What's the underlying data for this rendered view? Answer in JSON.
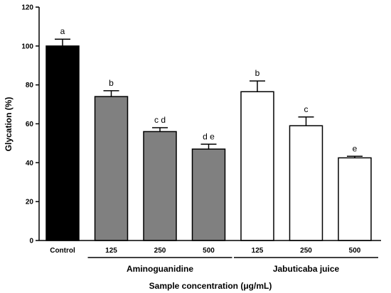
{
  "chart_data": {
    "type": "bar",
    "ylabel": "Glycation (%)",
    "xlabel": "Sample concentration (μg/mL)",
    "ylim": [
      0,
      120
    ],
    "yticks": [
      "0",
      "20",
      "40",
      "60",
      "80",
      "100",
      "120"
    ],
    "grid": false,
    "bars": [
      {
        "category": "Control",
        "value": 100,
        "error": 3.5,
        "significance": "a",
        "color": "#000000"
      },
      {
        "category": "125",
        "value": 74,
        "error": 3,
        "significance": "b",
        "color": "#808080"
      },
      {
        "category": "250",
        "value": 56,
        "error": 2,
        "significance": "c d",
        "color": "#808080"
      },
      {
        "category": "500",
        "value": 47,
        "error": 2.5,
        "significance": "d e",
        "color": "#808080"
      },
      {
        "category": "125",
        "value": 76.5,
        "error": 5.5,
        "significance": "b",
        "color": "#ffffff"
      },
      {
        "category": "250",
        "value": 59,
        "error": 4.5,
        "significance": "c",
        "color": "#ffffff"
      },
      {
        "category": "500",
        "value": 42.5,
        "error": 0.8,
        "significance": "e",
        "color": "#ffffff"
      }
    ],
    "groups": [
      {
        "label": "Aminoguanidine",
        "bar_indices": [
          1,
          2,
          3
        ]
      },
      {
        "label": "Jabuticaba juice",
        "bar_indices": [
          4,
          5,
          6
        ]
      }
    ]
  }
}
